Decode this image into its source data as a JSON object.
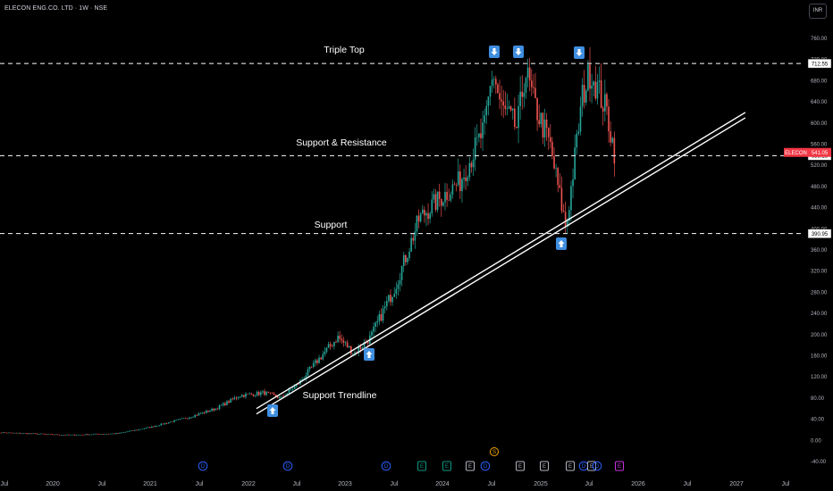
{
  "header": {
    "symbol_title": "ELECON ENG.CO. LTD · 1W · NSE",
    "currency_label": "INR"
  },
  "colors": {
    "up": "#26a69a",
    "down": "#ef5350",
    "accent_red": "#f23645",
    "dividend": "#2962ff",
    "earnings": "#089981",
    "split": "#f7a600",
    "future_earnings": "#c730e0",
    "arrow": "#3f8ee0"
  },
  "chart_data": {
    "type": "candlestick",
    "title": "ELECON ENG.CO. LTD · 1W · NSE",
    "yaxis": {
      "ticks": [
        760,
        720,
        680,
        640,
        600,
        560,
        520,
        480,
        440,
        400,
        360,
        320,
        280,
        240,
        200,
        160,
        120,
        80,
        40,
        0,
        -40
      ],
      "ylim": [
        -40,
        780
      ],
      "position": "right"
    },
    "xaxis": {
      "ticks": [
        "Jul",
        "2020",
        "Jul",
        "2021",
        "Jul",
        "2022",
        "Jul",
        "2023",
        "Jul",
        "2024",
        "Jul",
        "2025",
        "Jul",
        "2026",
        "Jul",
        "2027",
        "Jul"
      ]
    },
    "series": [
      {
        "name": "ELECON",
        "keypoints": [
          [
            "2019-06",
            15
          ],
          [
            "2020-03",
            10
          ],
          [
            "2020-09",
            13
          ],
          [
            "2021-01",
            25
          ],
          [
            "2021-06",
            45
          ],
          [
            "2021-09",
            60
          ],
          [
            "2021-12",
            85
          ],
          [
            "2022-03",
            90
          ],
          [
            "2022-05",
            80
          ],
          [
            "2022-07",
            105
          ],
          [
            "2022-10",
            160
          ],
          [
            "2022-12",
            195
          ],
          [
            "2023-02",
            165
          ],
          [
            "2023-04",
            195
          ],
          [
            "2023-07",
            290
          ],
          [
            "2023-10",
            420
          ],
          [
            "2023-12",
            450
          ],
          [
            "2024-03",
            490
          ],
          [
            "2024-06",
            590
          ],
          [
            "2024-07",
            700
          ],
          [
            "2024-08",
            630
          ],
          [
            "2024-10",
            590
          ],
          [
            "2024-11",
            700
          ],
          [
            "2024-12",
            640
          ],
          [
            "2025-02",
            560
          ],
          [
            "2025-04",
            400
          ],
          [
            "2025-06",
            650
          ],
          [
            "2025-07",
            700
          ],
          [
            "2025-09",
            620
          ],
          [
            "2025-10",
            541
          ]
        ]
      }
    ],
    "price_lines": [
      {
        "label": "Triple Top",
        "value": 712.55
      },
      {
        "label": "Support & Resistance",
        "value": 538.25
      },
      {
        "label": "Support",
        "value": 390.95
      }
    ],
    "current_price": {
      "symbol": "ELECON",
      "value": "541.05"
    },
    "trendline": {
      "label": "Support Trendline",
      "from": [
        "2022-02",
        55
      ],
      "to": [
        "2027-02",
        615
      ]
    },
    "annotations": [
      {
        "label": "Triple Top"
      },
      {
        "label": "Support & Resistance"
      },
      {
        "label": "Support"
      },
      {
        "label": "Support Trendline"
      }
    ],
    "markers": [
      {
        "type": "down",
        "date": "2024-07"
      },
      {
        "type": "down",
        "date": "2024-11"
      },
      {
        "type": "down",
        "date": "2025-07"
      },
      {
        "type": "up",
        "date": "2022-03"
      },
      {
        "type": "up",
        "date": "2023-03"
      },
      {
        "type": "up",
        "date": "2025-04"
      }
    ],
    "events": [
      {
        "type": "dividend",
        "label": "D",
        "date": "2021-07"
      },
      {
        "type": "dividend",
        "label": "D",
        "date": "2022-07"
      },
      {
        "type": "dividend",
        "label": "D",
        "date": "2023-07"
      },
      {
        "type": "earnings",
        "label": "E",
        "date": "2024-01"
      },
      {
        "type": "earnings",
        "label": "E",
        "date": "2024-04"
      },
      {
        "type": "dividend",
        "label": "D",
        "date": "2024-06"
      },
      {
        "type": "earnings",
        "label": "E",
        "date": "2024-07"
      },
      {
        "type": "split",
        "label": "S",
        "date": "2024-07"
      },
      {
        "type": "earnings",
        "label": "E",
        "date": "2024-10"
      },
      {
        "type": "earnings",
        "label": "E",
        "date": "2025-01"
      },
      {
        "type": "earnings",
        "label": "E",
        "date": "2025-04"
      },
      {
        "type": "dividend",
        "label": "D",
        "date": "2025-06"
      },
      {
        "type": "earnings",
        "label": "E",
        "date": "2025-07"
      },
      {
        "type": "dividend",
        "label": "D",
        "date": "2025-07"
      },
      {
        "type": "future_earnings",
        "label": "E",
        "date": "2025-10"
      }
    ],
    "grid": false,
    "legend": "none"
  }
}
